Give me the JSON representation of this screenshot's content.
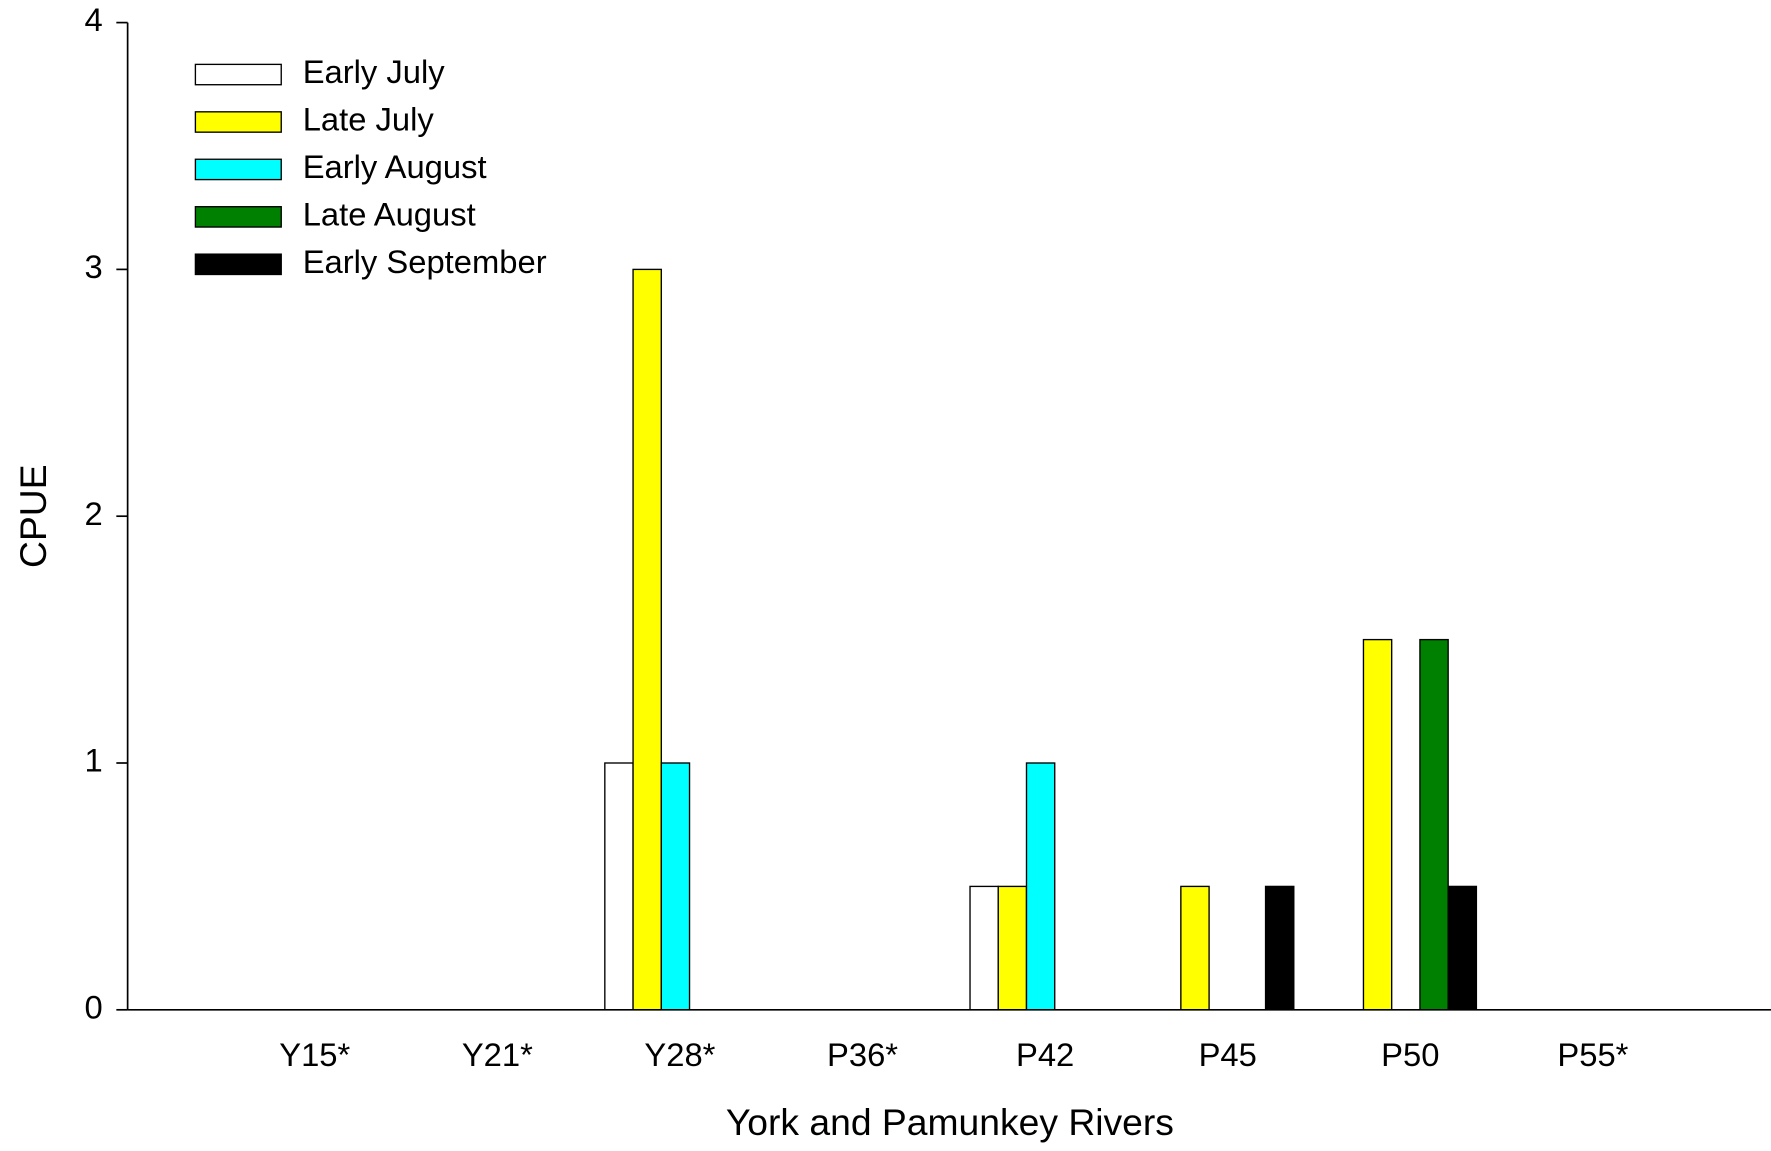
{
  "chart_data": {
    "type": "bar",
    "x_label": "York and Pamunkey Rivers",
    "y_label": "CPUE",
    "categories": [
      "Y15*",
      "Y21*",
      "Y28*",
      "P36*",
      "P42",
      "P45",
      "P50",
      "P55*"
    ],
    "series": [
      {
        "name": "Early July",
        "color": "#ffffff",
        "values": [
          0,
          0,
          1,
          0,
          0.5,
          0,
          0,
          0
        ]
      },
      {
        "name": "Late July",
        "color": "#ffff00",
        "values": [
          0,
          0,
          3,
          0,
          0.5,
          0.5,
          1.5,
          0
        ]
      },
      {
        "name": "Early August",
        "color": "#00ffff",
        "values": [
          0,
          0,
          1,
          0,
          1,
          0,
          0,
          0
        ]
      },
      {
        "name": "Late August",
        "color": "#008000",
        "values": [
          0,
          0,
          0,
          0,
          0,
          0,
          1.5,
          0
        ]
      },
      {
        "name": "Early September",
        "color": "#000000",
        "values": [
          0,
          0,
          0,
          0,
          0,
          0.5,
          0.5,
          0
        ]
      }
    ],
    "ylim": [
      0,
      4
    ],
    "yticks": [
      0,
      1,
      2,
      3,
      4
    ],
    "legend": "upper left"
  }
}
